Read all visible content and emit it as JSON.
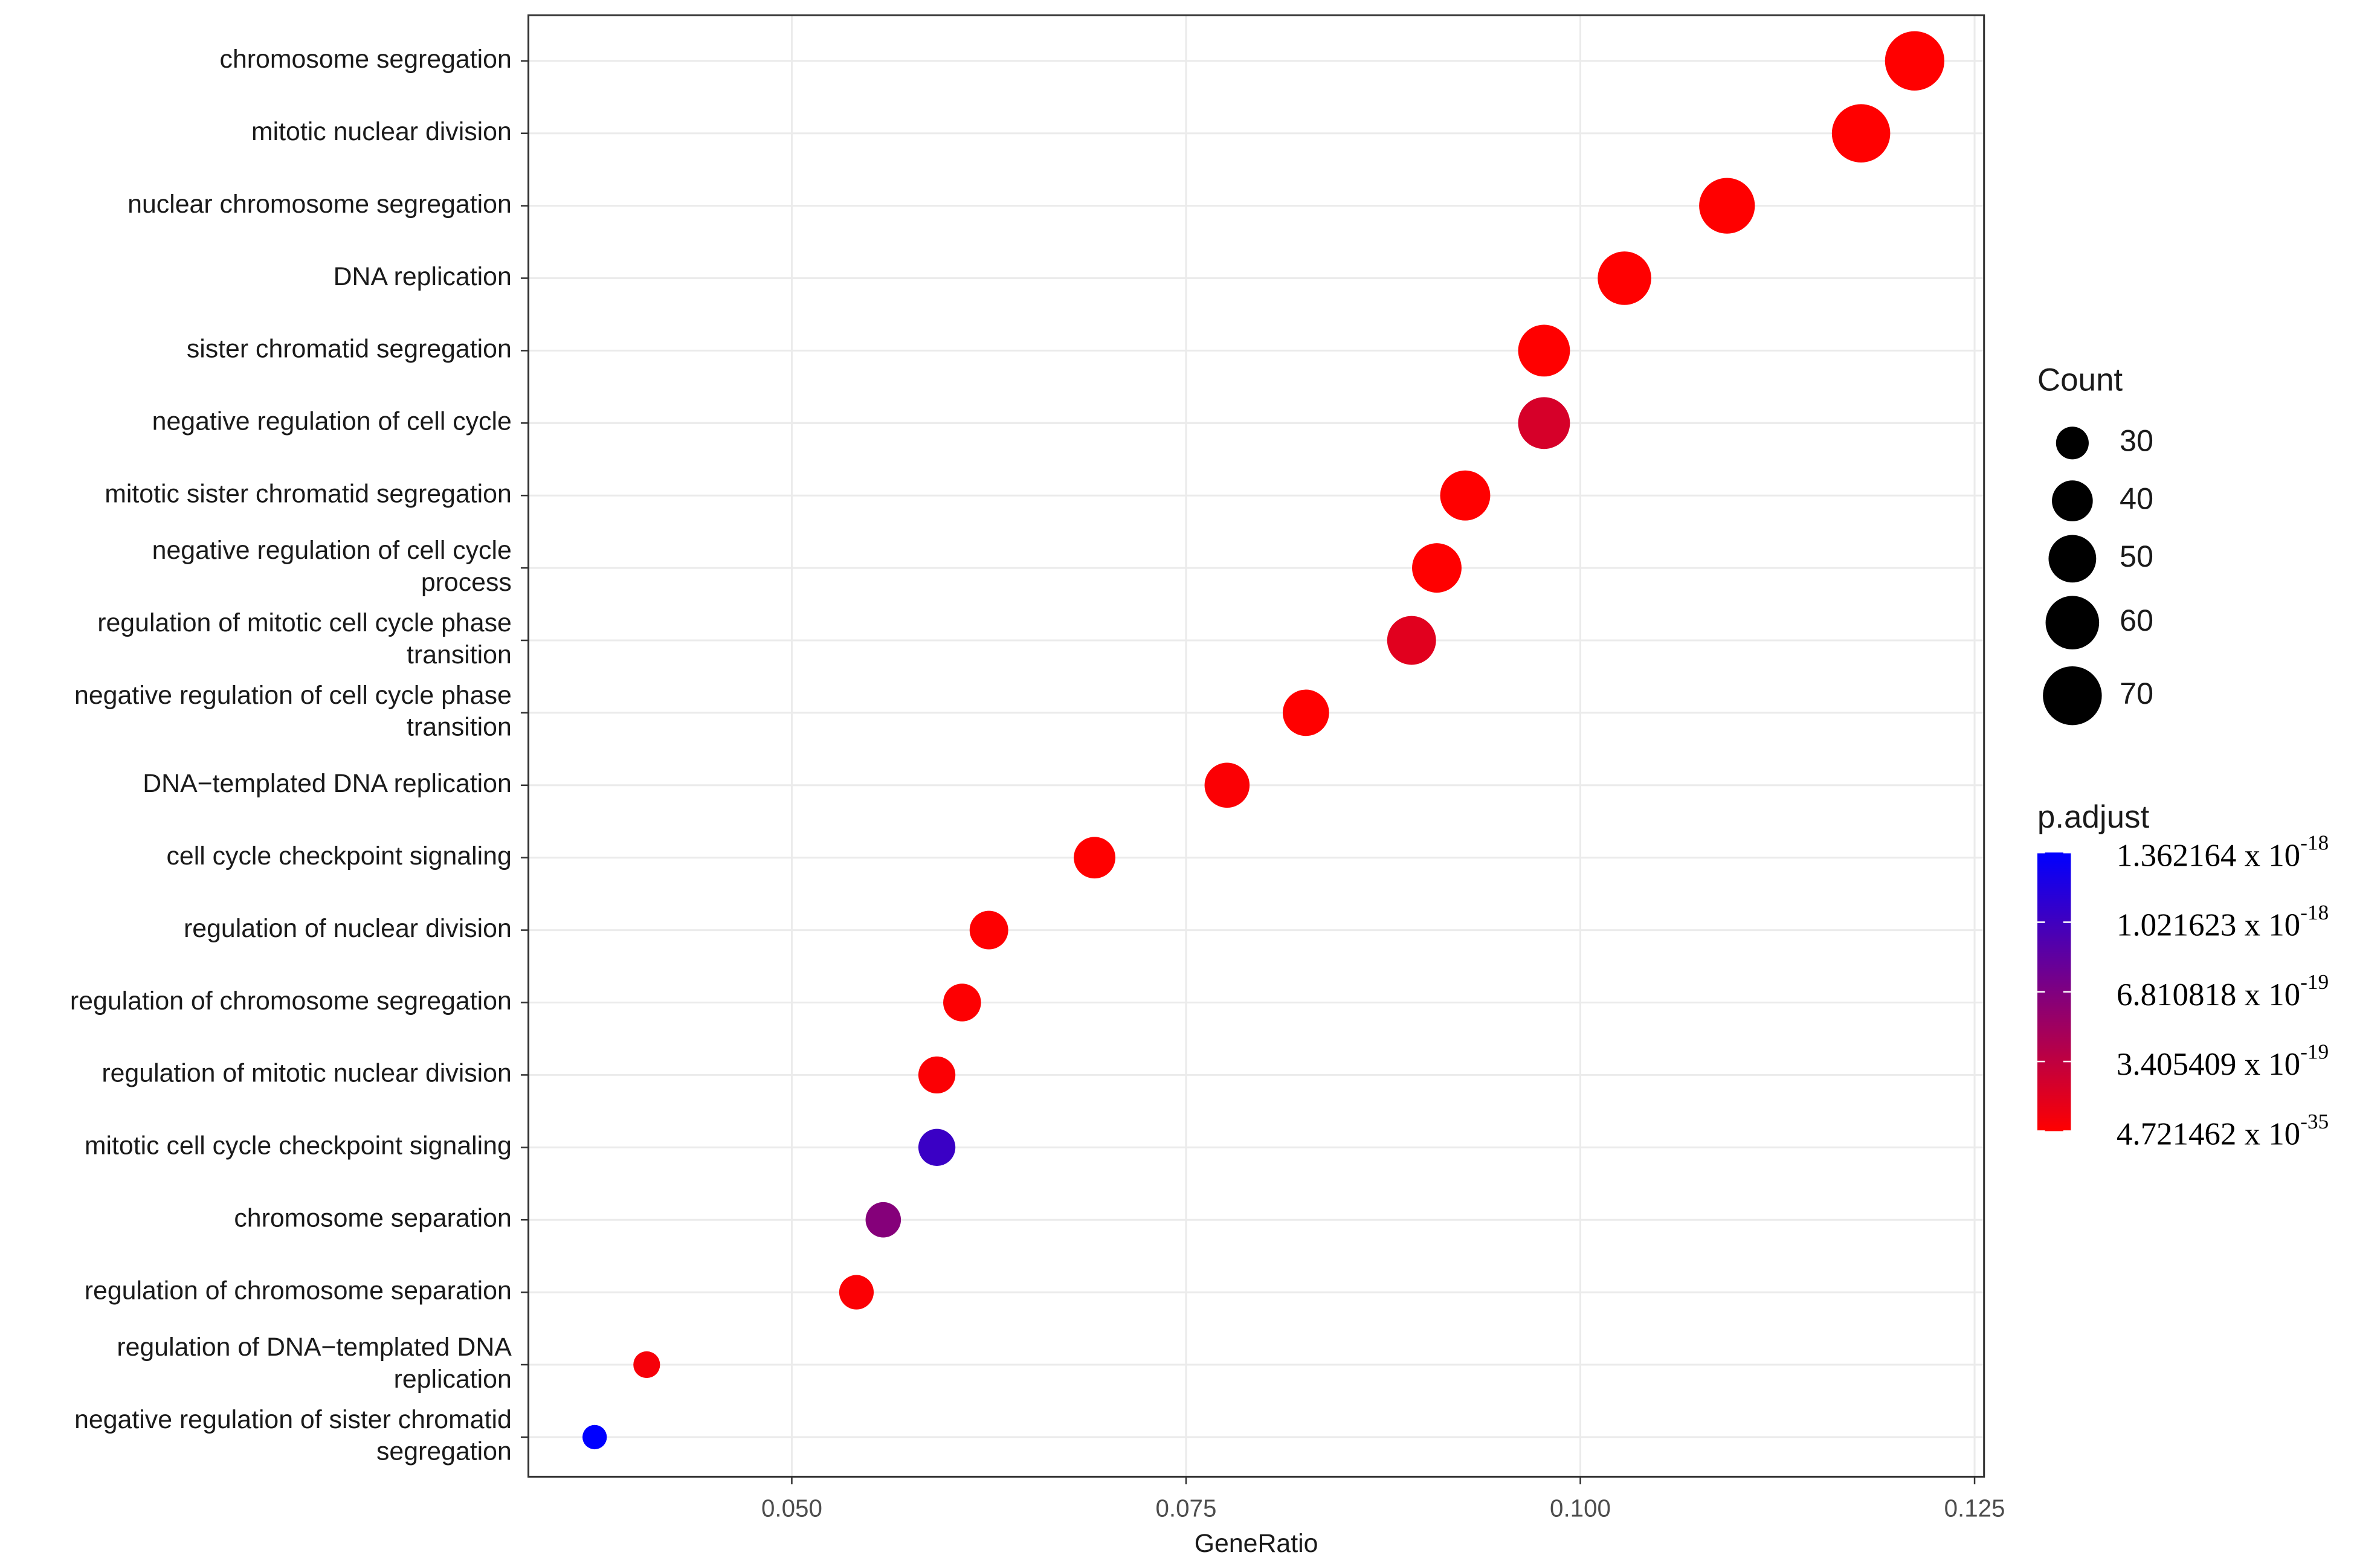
{
  "chart_data": {
    "type": "dot",
    "x_label": "GeneRatio",
    "categories": [
      [
        "chromosome segregation"
      ],
      [
        "mitotic nuclear division"
      ],
      [
        "nuclear chromosome segregation"
      ],
      [
        "DNA replication"
      ],
      [
        "sister chromatid segregation"
      ],
      [
        "negative regulation of cell cycle"
      ],
      [
        "mitotic sister chromatid segregation"
      ],
      [
        "negative regulation of cell cycle",
        "process"
      ],
      [
        "regulation of mitotic cell cycle phase",
        "transition"
      ],
      [
        "negative regulation of cell cycle phase",
        "transition"
      ],
      [
        "DNA−templated DNA replication"
      ],
      [
        "cell cycle checkpoint signaling"
      ],
      [
        "regulation of nuclear division"
      ],
      [
        "regulation of chromosome segregation"
      ],
      [
        "regulation of mitotic nuclear division"
      ],
      [
        "mitotic cell cycle checkpoint signaling"
      ],
      [
        "chromosome separation"
      ],
      [
        "regulation of chromosome separation"
      ],
      [
        "regulation of DNA−templated DNA",
        "replication"
      ],
      [
        "negative regulation of sister chromatid",
        "segregation"
      ]
    ],
    "x": [
      0.1212,
      0.1178,
      0.1093,
      0.1028,
      0.0977,
      0.0977,
      0.0927,
      0.0909,
      0.0893,
      0.0826,
      0.0776,
      0.0692,
      0.0625,
      0.0608,
      0.0592,
      0.0592,
      0.0558,
      0.0541,
      0.0408,
      0.0375
    ],
    "size_title": "Count",
    "sizes": [
      71,
      69,
      64,
      60,
      57,
      57,
      54,
      53,
      52,
      48,
      46,
      41,
      37,
      36,
      35,
      35,
      33,
      32,
      24,
      22
    ],
    "size_legend": [
      30,
      40,
      50,
      60,
      70
    ],
    "color_title": "p.adjust",
    "colors": [
      1e-34,
      2e-30,
      5e-28,
      1e-25,
      3e-22,
      2.2e-19,
      1e-23,
      5e-22,
      1.6e-19,
      1e-21,
      2e-20,
      1e-21,
      5e-21,
      1e-20,
      2e-20,
      1.05e-18,
      6.5e-19,
      2e-20,
      5e-20,
      1.362164e-18
    ],
    "color_low": "#ff0000",
    "color_high": "#0000ff",
    "clim": [
      4.721462e-35,
      1.362164e-18
    ],
    "cticks": [
      {
        "value": 1.362164e-18,
        "label": "1.362164 x 10",
        "exponent": "-18"
      },
      {
        "value": 1.021623e-18,
        "label": "1.021623 x 10",
        "exponent": "-18"
      },
      {
        "value": 6.810818e-19,
        "label": "6.810818 x 10",
        "exponent": "-19"
      },
      {
        "value": 3.405409e-19,
        "label": "3.405409 x 10",
        "exponent": "-19"
      },
      {
        "value": 4.721462e-35,
        "label": "4.721462 x 10",
        "exponent": "-35"
      }
    ],
    "xlim": [
      0.0333,
      0.1256
    ],
    "xticks": [
      {
        "value": 0.05,
        "label": "0.050"
      },
      {
        "value": 0.075,
        "label": "0.075"
      },
      {
        "value": 0.1,
        "label": "0.100"
      },
      {
        "value": 0.125,
        "label": "0.125"
      }
    ],
    "grid": true
  }
}
